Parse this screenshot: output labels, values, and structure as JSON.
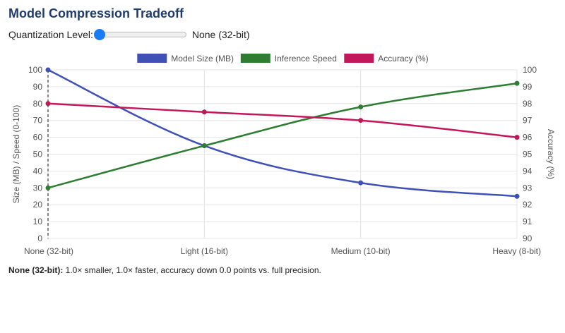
{
  "title": "Model Compression Tradeoff",
  "control": {
    "label": "Quantization Level:",
    "value_label": "None (32-bit)",
    "slider_fraction": 0,
    "thumb_color": "#1a7cf5"
  },
  "summary": {
    "prefix": "None (32-bit):",
    "text": " 1.0× smaller, 1.0× faster, accuracy down 0.0 points vs. full precision."
  },
  "chart_data": {
    "type": "line",
    "title": "",
    "categories": [
      "None (32-bit)",
      "Light (16-bit)",
      "Medium (10-bit)",
      "Heavy (8-bit)"
    ],
    "ylabel": "Size (MB) / Speed (0-100)",
    "y2label": "Accuracy (%)",
    "ylim": [
      0,
      100
    ],
    "y_ticks": [
      "0",
      "10",
      "20",
      "30",
      "40",
      "50",
      "60",
      "70",
      "80",
      "90",
      "100"
    ],
    "y2lim": [
      90,
      100
    ],
    "y2_ticks": [
      "90",
      "91",
      "92",
      "93",
      "94",
      "95",
      "96",
      "97",
      "98",
      "99",
      "100"
    ],
    "grid": true,
    "legend_position": "top-center",
    "highlight_category_index": 0,
    "series": [
      {
        "name": "Model Size (MB)",
        "axis": "left",
        "color": "#3f51b5",
        "values": [
          100,
          55,
          33,
          25
        ]
      },
      {
        "name": "Inference Speed",
        "axis": "left",
        "color": "#2e7d32",
        "values": [
          30,
          55,
          78,
          92
        ]
      },
      {
        "name": "Accuracy (%)",
        "axis": "right",
        "color": "#c2185b",
        "values": [
          98,
          97.5,
          97,
          96
        ]
      }
    ]
  }
}
